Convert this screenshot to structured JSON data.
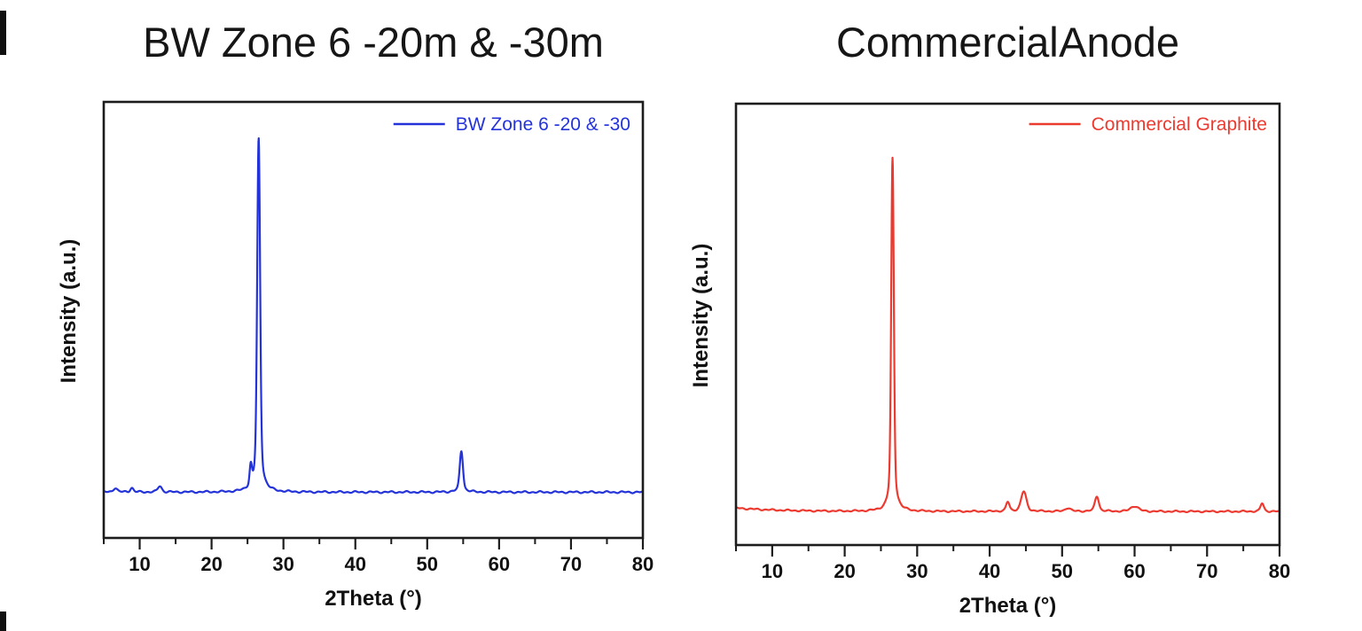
{
  "figure": {
    "background": "#ffffff",
    "frame_color": "#1c1c1c",
    "text_color": "#111111"
  },
  "chart_data": [
    {
      "type": "line",
      "title": "BW Zone 6 -20m & -30m",
      "legend": {
        "label": "BW Zone 6 -20 & -30",
        "position": "top-right"
      },
      "color": "#2433d9",
      "xlabel": "2Theta (°)",
      "ylabel": "Intensity (a.u.)",
      "axes": {
        "x_range": [
          5,
          80
        ],
        "x_major_ticks": [
          10,
          20,
          30,
          40,
          50,
          60,
          70,
          80
        ],
        "x_minor_step": 5,
        "y_ticks": "none (arbitrary units)",
        "grid": false
      },
      "baseline_offset": 0.105,
      "peak_scale": 0.81,
      "noise_amp": 0.0012,
      "start_boost": {
        "amp": 0.0,
        "decay": 7
      },
      "peaks": [
        {
          "two_theta": 6.6,
          "rel_intensity": 0.012,
          "fwhm": 0.6
        },
        {
          "two_theta": 8.9,
          "rel_intensity": 0.012,
          "fwhm": 0.5
        },
        {
          "two_theta": 12.8,
          "rel_intensity": 0.017,
          "fwhm": 0.6
        },
        {
          "two_theta": 25.45,
          "rel_intensity": 0.056,
          "fwhm": 0.35
        },
        {
          "two_theta": 26.55,
          "rel_intensity": 1.0,
          "fwhm": 0.45
        },
        {
          "two_theta": 54.75,
          "rel_intensity": 0.117,
          "fwhm": 0.5
        }
      ]
    },
    {
      "type": "line",
      "title": "Commercial Anode",
      "legend": {
        "label": "Commercial Graphite",
        "position": "top-right"
      },
      "color": "#ec3a30",
      "xlabel": "2Theta (°)",
      "ylabel": "Intensity (a.u.)",
      "axes": {
        "x_range": [
          5,
          80
        ],
        "x_major_ticks": [
          10,
          20,
          30,
          40,
          50,
          60,
          70,
          80
        ],
        "x_minor_step": 5,
        "y_ticks": "none (arbitrary units)",
        "grid": false
      },
      "baseline_offset": 0.076,
      "peak_scale": 0.8,
      "noise_amp": 0.001,
      "start_boost": {
        "amp": 0.008,
        "decay": 6
      },
      "peaks": [
        {
          "two_theta": 26.6,
          "rel_intensity": 1.0,
          "fwhm": 0.4
        },
        {
          "two_theta": 42.5,
          "rel_intensity": 0.026,
          "fwhm": 0.5
        },
        {
          "two_theta": 44.7,
          "rel_intensity": 0.056,
          "fwhm": 0.8
        },
        {
          "two_theta": 50.8,
          "rel_intensity": 0.01,
          "fwhm": 0.8
        },
        {
          "two_theta": 54.8,
          "rel_intensity": 0.043,
          "fwhm": 0.6
        },
        {
          "two_theta": 60.0,
          "rel_intensity": 0.015,
          "fwhm": 1.2
        },
        {
          "two_theta": 77.6,
          "rel_intensity": 0.023,
          "fwhm": 0.5
        }
      ]
    }
  ]
}
